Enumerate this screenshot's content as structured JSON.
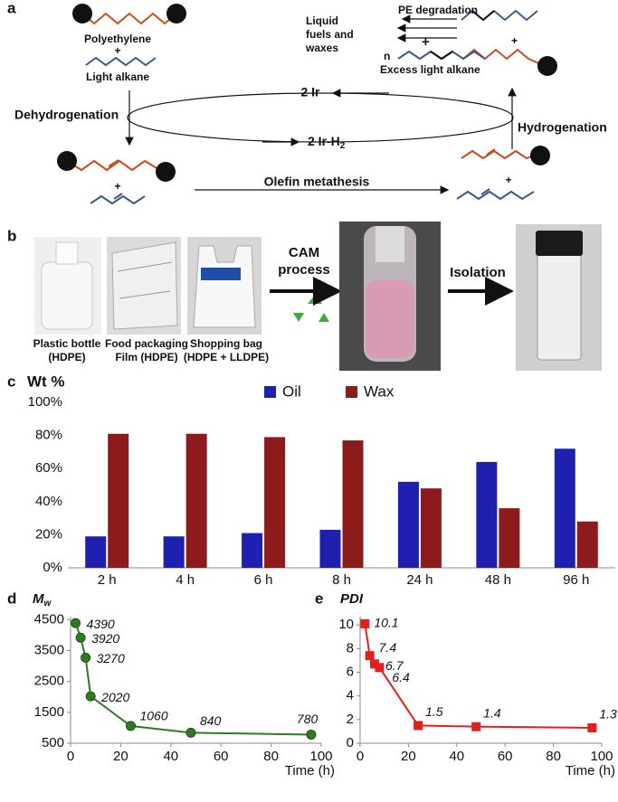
{
  "figure": {
    "panels": [
      "a",
      "b"
    ]
  },
  "scheme": {
    "polyethylene": "Polyethylene",
    "plus": "+",
    "light_alkane": "Light alkane",
    "dehydrogenation": "Dehydrogenation",
    "hydrogenation": "Hydrogenation",
    "catalyst": "2 Ir",
    "catalyst_h2": {
      "main": "2 Ir-H",
      "sub": "2"
    },
    "olefin_metathesis": "Olefin metathesis",
    "pe_degradation": "PE degradation",
    "products": [
      "Liquid",
      "fuels and",
      "waxes"
    ],
    "n": "n",
    "excess_light_alkane": "Excess light alkane"
  },
  "samples": {
    "items": [
      {
        "name": "Plastic bottle",
        "material": "(HDPE)"
      },
      {
        "name": "Food packaging",
        "material": "Film (HDPE)"
      },
      {
        "name": "Shopping bag",
        "material": "(HDPE + LLDPE)"
      }
    ],
    "process": [
      "CAM",
      "process"
    ],
    "isolation": "Isolation"
  },
  "chart_data": [
    {
      "type": "bar",
      "panel": "c",
      "title": "Wt %",
      "categories": [
        "2 h",
        "4 h",
        "6 h",
        "8 h",
        "24 h",
        "48 h",
        "96 h"
      ],
      "series": [
        {
          "name": "Oil",
          "color": "#1f1fb0",
          "values": [
            19,
            19,
            21,
            23,
            52,
            64,
            72
          ]
        },
        {
          "name": "Wax",
          "color": "#8e1b1b",
          "values": [
            81,
            81,
            79,
            77,
            48,
            36,
            28
          ]
        }
      ],
      "ylim": [
        0,
        100
      ],
      "yticks": [
        {
          "value": 0,
          "label": "0%"
        },
        {
          "value": 20,
          "label": "20%"
        },
        {
          "value": 40,
          "label": "40%"
        },
        {
          "value": 60,
          "label": "60%"
        },
        {
          "value": 80,
          "label": "80%"
        },
        {
          "value": 100,
          "label": "100%"
        }
      ],
      "legend": "top",
      "grid": false
    },
    {
      "type": "line",
      "panel": "d",
      "y_label": {
        "main": "M",
        "sub": "w"
      },
      "x_label": "Time (h)",
      "x": [
        2,
        4,
        6,
        8,
        24,
        48,
        96
      ],
      "values": [
        4390,
        3920,
        3270,
        2020,
        1060,
        840,
        780
      ],
      "color": "#2f7a22",
      "marker": "circle",
      "xlim": [
        0,
        100
      ],
      "xticks": [
        0,
        20,
        40,
        60,
        80,
        100
      ],
      "ylim": [
        500,
        4600
      ],
      "yticks": [
        500,
        1500,
        2500,
        3500,
        4500
      ]
    },
    {
      "type": "line",
      "panel": "e",
      "y_label": {
        "main": "PDI"
      },
      "x_label": "Time (h)",
      "x": [
        2,
        4,
        6,
        8,
        24,
        48,
        96
      ],
      "values": [
        10.1,
        7.4,
        6.7,
        6.4,
        1.5,
        1.4,
        1.3
      ],
      "color": "#e0201c",
      "marker": "square",
      "xlim": [
        0,
        100
      ],
      "xticks": [
        0,
        20,
        40,
        60,
        80,
        100
      ],
      "ylim": [
        0,
        10.7
      ],
      "yticks": [
        0,
        2,
        4,
        6,
        8,
        10
      ]
    }
  ]
}
